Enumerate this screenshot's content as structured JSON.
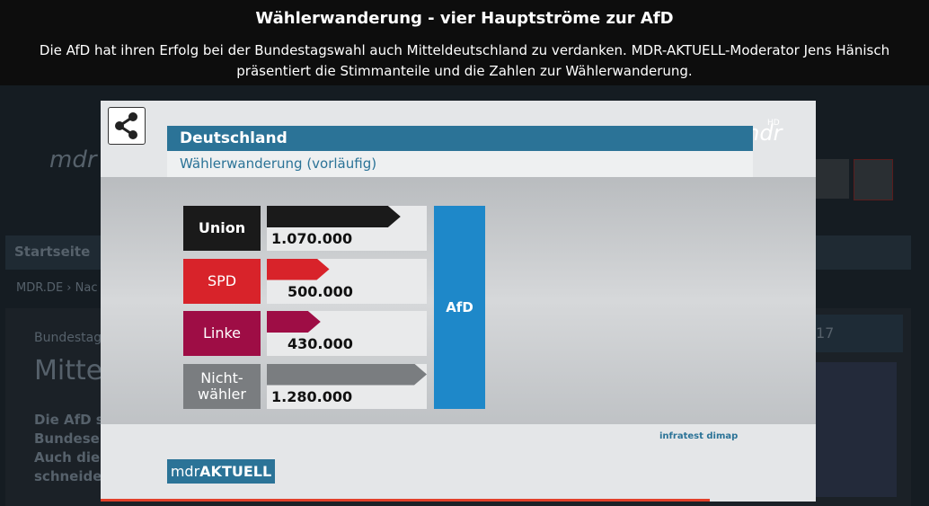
{
  "header": {
    "title": "Wählerwanderung - vier Hauptströme zur AfD",
    "description": "Die AfD hat ihren Erfolg bei der Bundestagswahl auch Mitteldeutschland zu verdanken. MDR-AKTUELL-Moderator Jens Hänisch präsentiert die Stimmanteile und die Zahlen zur Wählerwanderung."
  },
  "background": {
    "logo": "mdr",
    "nav": "Startseite",
    "breadcrumb": [
      "MDR.DE",
      "Nac"
    ],
    "kicker": "Bundestag",
    "headline": "Mitte",
    "teaser": [
      "Die AfD so",
      "Bundeseb",
      "Auch die I",
      "schneider"
    ],
    "badge": "17"
  },
  "video": {
    "logo": "mdr",
    "logo_badge": "HD",
    "panel_title": "Deutschland",
    "panel_subtitle": "Wählerwanderung (vorläufig)",
    "target": "AfD",
    "source": "infratest dimap",
    "brand_light": "mdr",
    "brand_bold": "AKTUELL",
    "rows": [
      {
        "label": "Union",
        "value": 1070000,
        "value_label": "1.070.000",
        "color": "#1a1a1a"
      },
      {
        "label": "SPD",
        "value": 500000,
        "value_label": "500.000",
        "color": "#d8232a"
      },
      {
        "label": "Linke",
        "value": 430000,
        "value_label": "430.000",
        "color": "#9e0d45"
      },
      {
        "label": "Nicht-\nwähler",
        "value": 1280000,
        "value_label": "1.280.000",
        "color": "#7a7d80"
      }
    ]
  }
}
